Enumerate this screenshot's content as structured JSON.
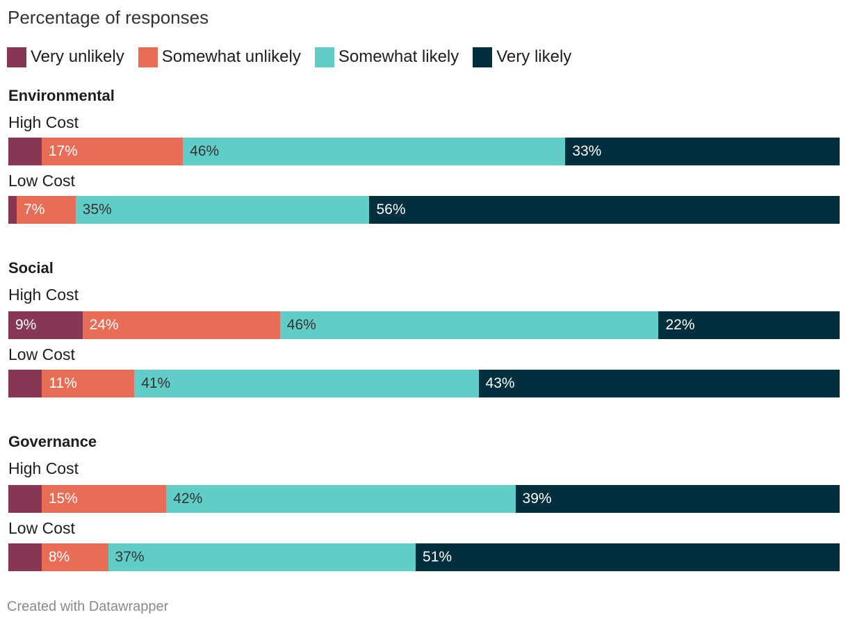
{
  "subtitle": "Percentage of responses",
  "legend": [
    {
      "label": "Very unlikely",
      "color": "#873753"
    },
    {
      "label": "Somewhat unlikely",
      "color": "#e76d57"
    },
    {
      "label": "Somewhat likely",
      "color": "#62cdc7"
    },
    {
      "label": "Very likely",
      "color": "#022f3e"
    }
  ],
  "footer": "Created with Datawrapper",
  "chart_data": {
    "type": "bar",
    "stacked": true,
    "orientation": "horizontal",
    "value_unit": "%",
    "categories_order": [
      "Very unlikely",
      "Somewhat unlikely",
      "Somewhat likely",
      "Very likely"
    ],
    "groups": [
      {
        "title": "Environmental",
        "rows": [
          {
            "label": "High Cost",
            "values": [
              4,
              17,
              46,
              33
            ],
            "labels": [
              "",
              "17%",
              "46%",
              "33%"
            ]
          },
          {
            "label": "Low Cost",
            "values": [
              1,
              7,
              35,
              56
            ],
            "labels": [
              "",
              "7%",
              "35%",
              "56%"
            ]
          }
        ]
      },
      {
        "title": "Social",
        "rows": [
          {
            "label": "High Cost",
            "values": [
              9,
              24,
              46,
              22
            ],
            "labels": [
              "9%",
              "24%",
              "46%",
              "22%"
            ]
          },
          {
            "label": "Low Cost",
            "values": [
              4,
              11,
              41,
              43
            ],
            "labels": [
              "",
              "11%",
              "41%",
              "43%"
            ]
          }
        ]
      },
      {
        "title": "Governance",
        "rows": [
          {
            "label": "High Cost",
            "values": [
              4,
              15,
              42,
              39
            ],
            "labels": [
              "",
              "15%",
              "42%",
              "39%"
            ]
          },
          {
            "label": "Low Cost",
            "values": [
              4,
              8,
              37,
              51
            ],
            "labels": [
              "",
              "8%",
              "37%",
              "51%"
            ]
          }
        ]
      }
    ]
  }
}
